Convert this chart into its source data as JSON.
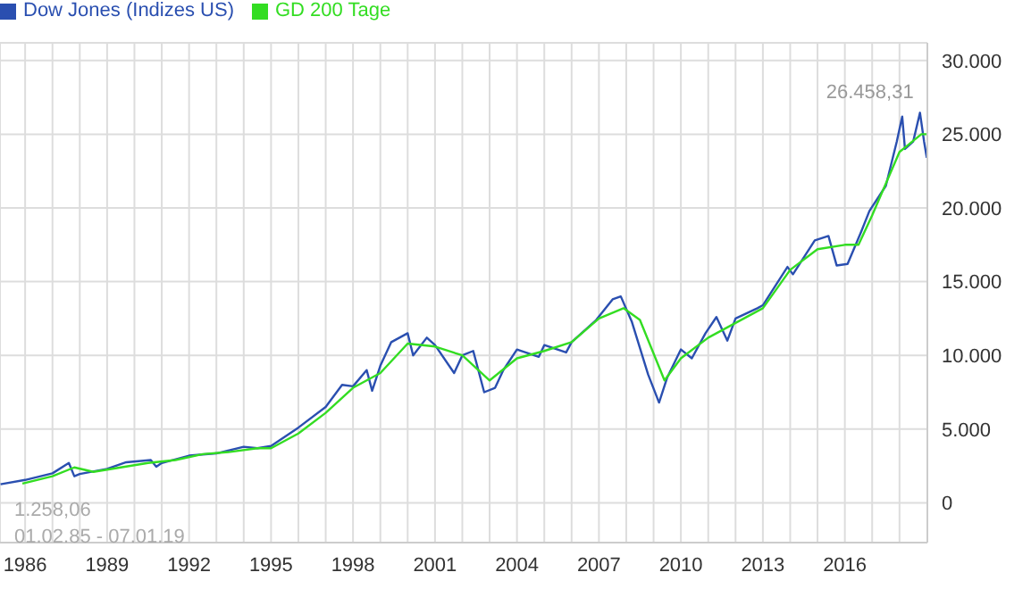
{
  "chart_data": {
    "type": "line",
    "legend": "top left",
    "grid": true,
    "marker": "none",
    "line_style": "solid",
    "xlim": [
      1985.08,
      2019.02
    ],
    "xticks": [
      {
        "value": 1986,
        "label": "1986"
      },
      {
        "value": 1987,
        "label": null
      },
      {
        "value": 1988,
        "label": null
      },
      {
        "value": 1989,
        "label": "1989"
      },
      {
        "value": 1990,
        "label": null
      },
      {
        "value": 1991,
        "label": null
      },
      {
        "value": 1992,
        "label": "1992"
      },
      {
        "value": 1993,
        "label": null
      },
      {
        "value": 1994,
        "label": null
      },
      {
        "value": 1995,
        "label": "1995"
      },
      {
        "value": 1996,
        "label": null
      },
      {
        "value": 1997,
        "label": null
      },
      {
        "value": 1998,
        "label": "1998"
      },
      {
        "value": 1999,
        "label": null
      },
      {
        "value": 2000,
        "label": null
      },
      {
        "value": 2001,
        "label": "2001"
      },
      {
        "value": 2002,
        "label": null
      },
      {
        "value": 2003,
        "label": null
      },
      {
        "value": 2004,
        "label": "2004"
      },
      {
        "value": 2005,
        "label": null
      },
      {
        "value": 2006,
        "label": null
      },
      {
        "value": 2007,
        "label": "2007"
      },
      {
        "value": 2008,
        "label": null
      },
      {
        "value": 2009,
        "label": null
      },
      {
        "value": 2010,
        "label": "2010"
      },
      {
        "value": 2011,
        "label": null
      },
      {
        "value": 2012,
        "label": null
      },
      {
        "value": 2013,
        "label": "2013"
      },
      {
        "value": 2014,
        "label": null
      },
      {
        "value": 2015,
        "label": null
      },
      {
        "value": 2016,
        "label": "2016"
      },
      {
        "value": 2017,
        "label": null
      },
      {
        "value": 2018,
        "label": null
      }
    ],
    "ylim": [
      -2700,
      31200
    ],
    "yticks": [
      {
        "value": 0,
        "label": "0"
      },
      {
        "value": 5000,
        "label": "5.000"
      },
      {
        "value": 10000,
        "label": "10.000"
      },
      {
        "value": 15000,
        "label": "15.000"
      },
      {
        "value": 20000,
        "label": "20.000"
      },
      {
        "value": 25000,
        "label": "25.000"
      },
      {
        "value": 30000,
        "label": "30.000"
      }
    ],
    "annotations": [
      {
        "text": "26.458,31",
        "x": 2018.75,
        "y": 26458
      },
      "1.258,06",
      "01.02.85 - 07.01.19"
    ],
    "series": [
      {
        "name": "Dow Jones (Indizes US)",
        "color": "#2a4fb0",
        "x": [
          1985.1,
          1986,
          1987,
          1987.6,
          1987.8,
          1988,
          1989,
          1989.7,
          1990.6,
          1990.8,
          1991,
          1992,
          1993,
          1994,
          1994.5,
          1995,
          1996,
          1997,
          1997.6,
          1998,
          1998.5,
          1998.7,
          1999,
          1999.4,
          2000,
          2000.2,
          2000.7,
          2001,
          2001.7,
          2002,
          2002.4,
          2002.8,
          2003.2,
          2003.5,
          2004,
          2004.8,
          2005,
          2005.8,
          2006,
          2006.9,
          2007.5,
          2007.8,
          2008.2,
          2008.8,
          2009.2,
          2009.5,
          2010,
          2010.4,
          2010.9,
          2011.3,
          2011.7,
          2012,
          2012.8,
          2013,
          2013.9,
          2014.1,
          2014.9,
          2015.4,
          2015.7,
          2016.1,
          2016.6,
          2016.9,
          2017.5,
          2017.9,
          2018.1,
          2018.2,
          2018.5,
          2018.75,
          2018.9,
          2019.0
        ],
        "values": [
          1260,
          1550,
          2000,
          2700,
          1800,
          1950,
          2300,
          2750,
          2900,
          2450,
          2700,
          3200,
          3350,
          3800,
          3700,
          3850,
          5100,
          6500,
          8000,
          7900,
          9000,
          7600,
          9300,
          10900,
          11500,
          10000,
          11200,
          10700,
          8800,
          10000,
          10300,
          7500,
          7800,
          9000,
          10400,
          9900,
          10700,
          10200,
          10900,
          12400,
          13800,
          14000,
          12300,
          8700,
          6800,
          8500,
          10400,
          9800,
          11500,
          12600,
          11000,
          12500,
          13200,
          13400,
          16000,
          15500,
          17800,
          18100,
          16100,
          16200,
          18400,
          19800,
          21500,
          24500,
          26200,
          24000,
          24500,
          26458,
          24500,
          23400
        ]
      },
      {
        "name": "GD 200 Tage",
        "color": "#33dd22",
        "x": [
          1985.9,
          1987,
          1987.8,
          1988.5,
          1989.5,
          1990.5,
          1991.5,
          1992.5,
          1993.5,
          1994.5,
          1995,
          1996,
          1997,
          1998,
          1999,
          2000,
          2001,
          2002,
          2003,
          2004,
          2005,
          2006,
          2007,
          2007.9,
          2008.5,
          2009.4,
          2010,
          2011,
          2012,
          2013,
          2014,
          2015,
          2016,
          2016.5,
          2017,
          2018,
          2018.8,
          2019
        ],
        "values": [
          1300,
          1800,
          2400,
          2100,
          2400,
          2700,
          2900,
          3300,
          3450,
          3700,
          3700,
          4700,
          6100,
          7800,
          8800,
          10800,
          10600,
          10000,
          8300,
          9800,
          10300,
          10900,
          12500,
          13200,
          12400,
          8300,
          9800,
          11200,
          12200,
          13200,
          15800,
          17200,
          17500,
          17500,
          19500,
          23800,
          25000,
          25000
        ]
      }
    ]
  }
}
